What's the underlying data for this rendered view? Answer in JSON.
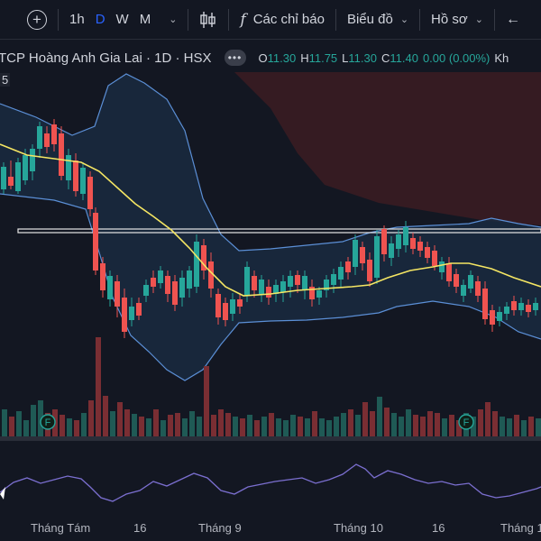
{
  "toolbar": {
    "add_symbol_icon": "plus-circle-icon",
    "timeframes": [
      "1h",
      "D",
      "W",
      "M"
    ],
    "active_timeframe": "D",
    "candle_icon": "candlestick-icon",
    "indicators_label": "Các chỉ báo",
    "chart_type_label": "Biểu đồ",
    "profile_label": "Hồ sơ",
    "undo_icon": "undo-arrow-icon"
  },
  "legend": {
    "symbol_title": "TCP Hoàng Anh Gia Lai · 1D · HSX",
    "more_label": "•••",
    "o_label": "O",
    "o_value": "11.30",
    "h_label": "H",
    "h_value": "11.75",
    "l_label": "L",
    "l_value": "11.30",
    "c_label": "C",
    "c_value": "11.40",
    "change": "0.00 (0.00%)",
    "extra": "Kh",
    "indicator_tag": "5"
  },
  "colors": {
    "up": "#26a69a",
    "down": "#ef5350",
    "background": "#131722",
    "ma_line": "#f5e663",
    "bollinger": "#5b8fd6",
    "bb_fill": "#1a2a3f",
    "cloud": "#3a1c22",
    "oscillator": "#7b6fd0"
  },
  "x_axis": {
    "labels": [
      "Tháng Tám",
      "16",
      "Tháng 9",
      "Tháng 10",
      "16",
      "Tháng 1"
    ]
  },
  "volume_markers": [
    "F",
    "F"
  ]
}
